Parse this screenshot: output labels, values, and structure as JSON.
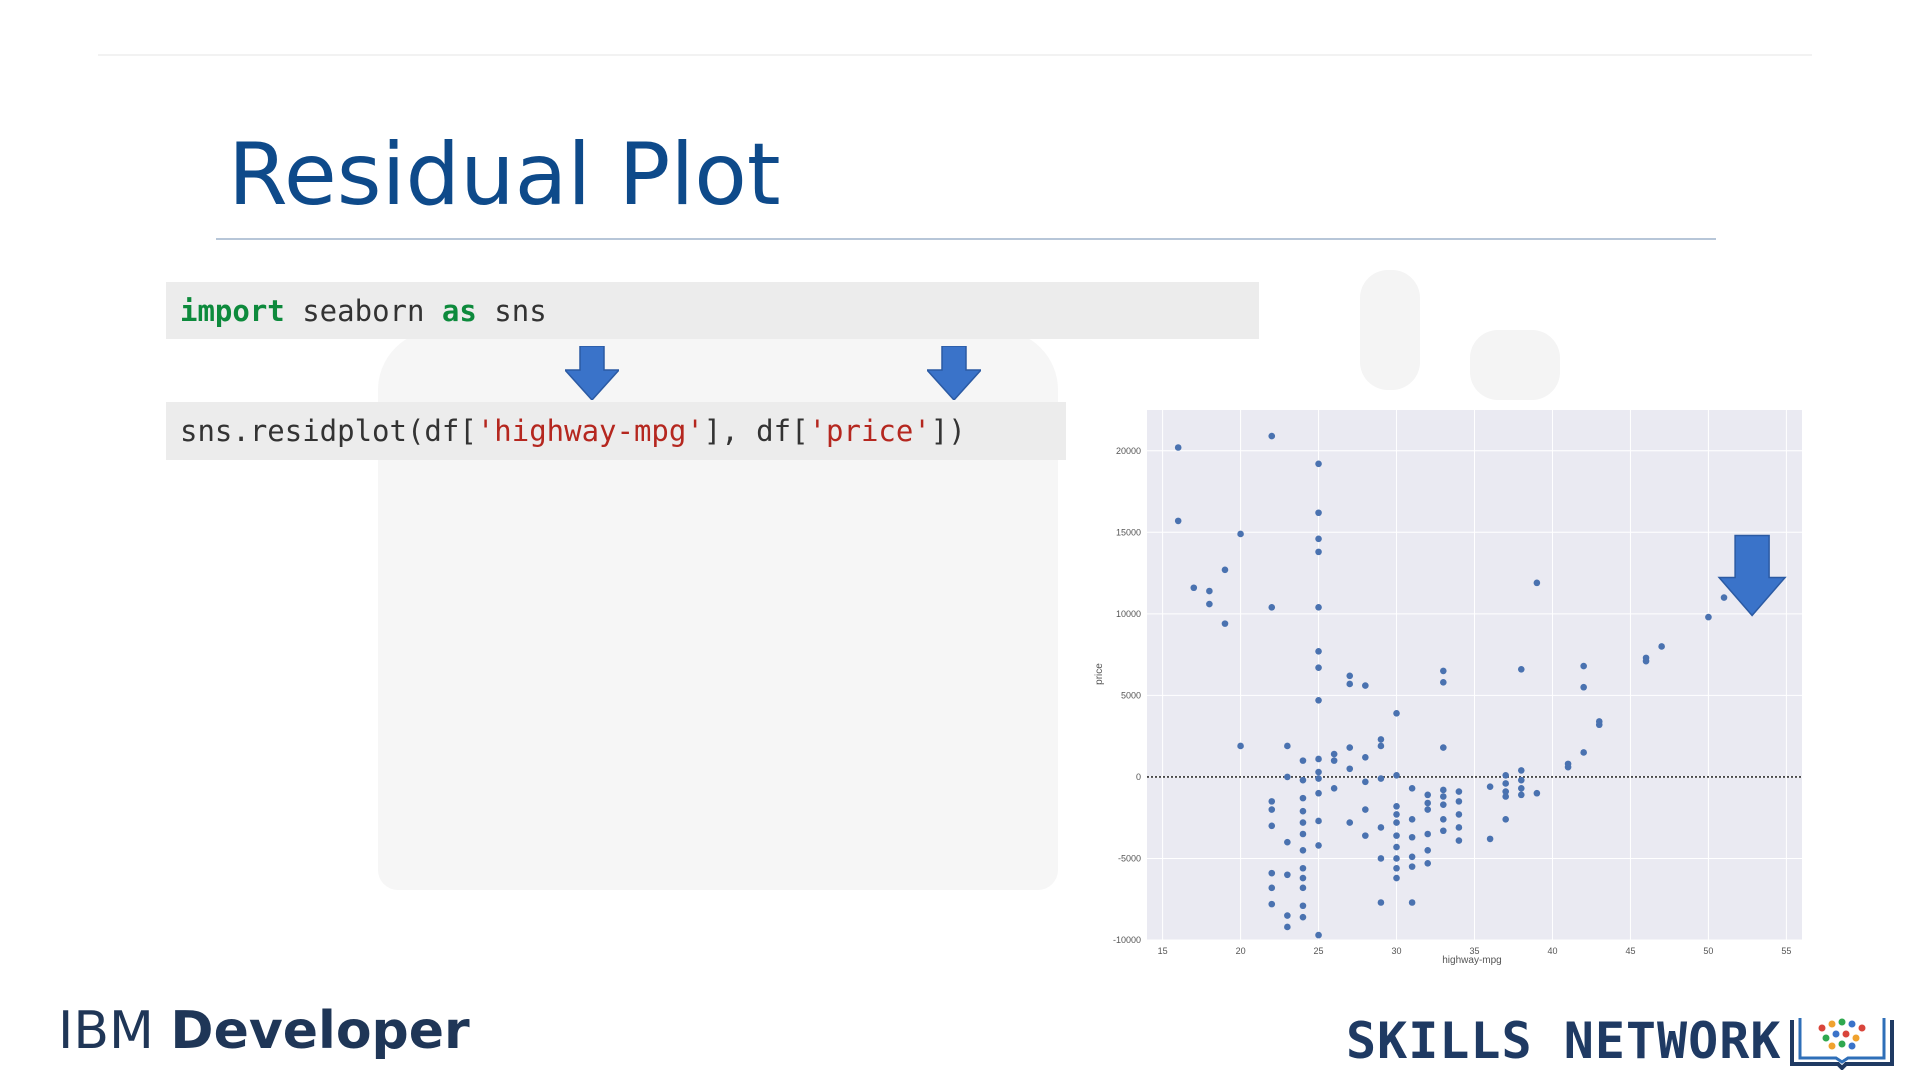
{
  "slide": {
    "title": "Residual Plot"
  },
  "code": {
    "line1": {
      "kw1": "import",
      "mid": " seaborn ",
      "kw2": "as",
      "tail": " sns"
    },
    "line2": {
      "pre": "sns.residplot(df[",
      "str1": "'highway-mpg'",
      "mid": "], df[",
      "str2": "'price'",
      "post": "])"
    }
  },
  "footer": {
    "ibm_regular": "IBM ",
    "ibm_bold": "Developer",
    "skills_network": "SKILLS NETWORK"
  },
  "colors": {
    "title": "#0e4a8a",
    "arrow": "#3a73c9",
    "points": "#4a72b0",
    "plot_bg": "#eaeaf2",
    "keyword": "#0d8a3c",
    "string": "#b5271f"
  },
  "chart_data": {
    "type": "scatter",
    "xlabel": "highway-mpg",
    "ylabel": "price",
    "xlim": [
      14,
      56
    ],
    "ylim": [
      -10000,
      22500
    ],
    "xticks": [
      15,
      20,
      25,
      30,
      35,
      40,
      45,
      50,
      55
    ],
    "yticks": [
      -10000,
      -5000,
      0,
      5000,
      10000,
      15000,
      20000
    ],
    "grid": true,
    "reference_line_y": 0,
    "points": [
      [
        16,
        20200
      ],
      [
        16,
        15700
      ],
      [
        17,
        11600
      ],
      [
        18,
        11400
      ],
      [
        18,
        10600
      ],
      [
        19,
        12700
      ],
      [
        19,
        9400
      ],
      [
        20,
        14900
      ],
      [
        20,
        1900
      ],
      [
        22,
        20900
      ],
      [
        22,
        10400
      ],
      [
        23,
        1900
      ],
      [
        23,
        0
      ],
      [
        23,
        -4000
      ],
      [
        23,
        -6000
      ],
      [
        23,
        -8500
      ],
      [
        23,
        -9200
      ],
      [
        22,
        -1500
      ],
      [
        22,
        -2000
      ],
      [
        22,
        -3000
      ],
      [
        22,
        -5900
      ],
      [
        22,
        -6800
      ],
      [
        22,
        -7800
      ],
      [
        24,
        -2100
      ],
      [
        24,
        -2800
      ],
      [
        24,
        -3500
      ],
      [
        24,
        -4500
      ],
      [
        24,
        -5600
      ],
      [
        24,
        -6200
      ],
      [
        24,
        -6800
      ],
      [
        24,
        -7900
      ],
      [
        24,
        -8600
      ],
      [
        24,
        -200
      ],
      [
        24,
        1000
      ],
      [
        24,
        -1300
      ],
      [
        25,
        19200
      ],
      [
        25,
        16200
      ],
      [
        25,
        14600
      ],
      [
        25,
        13800
      ],
      [
        25,
        10400
      ],
      [
        25,
        7700
      ],
      [
        25,
        6700
      ],
      [
        25,
        4700
      ],
      [
        25,
        1100
      ],
      [
        25,
        300
      ],
      [
        25,
        -100
      ],
      [
        25,
        -1000
      ],
      [
        25,
        -2700
      ],
      [
        25,
        -4200
      ],
      [
        25,
        -9700
      ],
      [
        26,
        1400
      ],
      [
        26,
        1000
      ],
      [
        26,
        -700
      ],
      [
        27,
        6200
      ],
      [
        27,
        5700
      ],
      [
        27,
        1800
      ],
      [
        27,
        500
      ],
      [
        27,
        -2800
      ],
      [
        28,
        5600
      ],
      [
        28,
        1200
      ],
      [
        28,
        -300
      ],
      [
        28,
        -2000
      ],
      [
        28,
        -3600
      ],
      [
        29,
        2300
      ],
      [
        29,
        1900
      ],
      [
        29,
        -100
      ],
      [
        29,
        -3100
      ],
      [
        29,
        -5000
      ],
      [
        29,
        -7700
      ],
      [
        30,
        3900
      ],
      [
        30,
        100
      ],
      [
        30,
        -1800
      ],
      [
        30,
        -2800
      ],
      [
        30,
        -3600
      ],
      [
        30,
        -4300
      ],
      [
        30,
        -5000
      ],
      [
        30,
        -5600
      ],
      [
        30,
        -6200
      ],
      [
        30,
        -2300
      ],
      [
        31,
        -700
      ],
      [
        31,
        -2600
      ],
      [
        31,
        -3700
      ],
      [
        31,
        -4900
      ],
      [
        31,
        -7700
      ],
      [
        31,
        -5500
      ],
      [
        32,
        -1100
      ],
      [
        32,
        -2000
      ],
      [
        32,
        -3500
      ],
      [
        32,
        -4500
      ],
      [
        32,
        -5300
      ],
      [
        32,
        -1600
      ],
      [
        33,
        6500
      ],
      [
        33,
        5800
      ],
      [
        33,
        1800
      ],
      [
        33,
        -1700
      ],
      [
        33,
        -2600
      ],
      [
        33,
        -3300
      ],
      [
        33,
        -800
      ],
      [
        33,
        -1200
      ],
      [
        34,
        -900
      ],
      [
        34,
        -1500
      ],
      [
        34,
        -2300
      ],
      [
        34,
        -3100
      ],
      [
        34,
        -3900
      ],
      [
        36,
        -3800
      ],
      [
        36,
        -600
      ],
      [
        37,
        100
      ],
      [
        37,
        -400
      ],
      [
        37,
        -900
      ],
      [
        37,
        -1200
      ],
      [
        37,
        -2600
      ],
      [
        38,
        6600
      ],
      [
        38,
        400
      ],
      [
        38,
        -200
      ],
      [
        38,
        -700
      ],
      [
        38,
        -1100
      ],
      [
        39,
        11900
      ],
      [
        39,
        -1000
      ],
      [
        41,
        800
      ],
      [
        41,
        600
      ],
      [
        42,
        6800
      ],
      [
        42,
        5500
      ],
      [
        42,
        1500
      ],
      [
        43,
        3400
      ],
      [
        43,
        3200
      ],
      [
        46,
        7300
      ],
      [
        46,
        7100
      ],
      [
        47,
        8000
      ],
      [
        50,
        9800
      ],
      [
        51,
        11000
      ],
      [
        53,
        12400
      ]
    ]
  }
}
